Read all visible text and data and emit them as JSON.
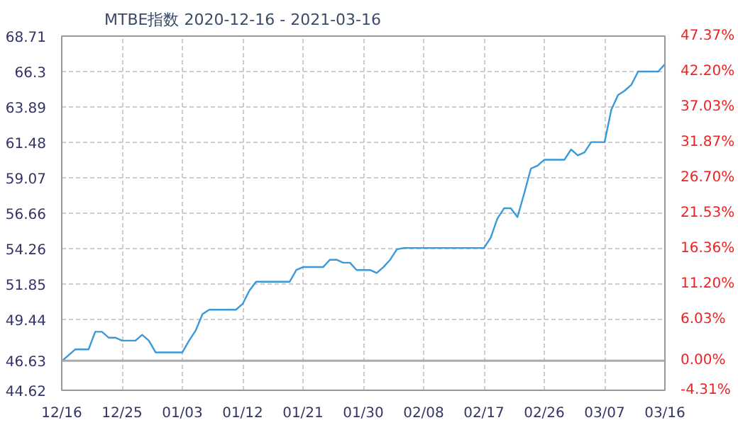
{
  "chart_data": {
    "type": "line",
    "title": "MTBE指数 2020-12-16 - 2021-03-16",
    "x": [
      "2020-12-16",
      "2020-12-18",
      "2020-12-20",
      "2020-12-21",
      "2020-12-22",
      "2020-12-23",
      "2020-12-24",
      "2020-12-25",
      "2020-12-27",
      "2020-12-28",
      "2020-12-29",
      "2020-12-30",
      "2021-01-03",
      "2021-01-04",
      "2021-01-05",
      "2021-01-06",
      "2021-01-07",
      "2021-01-11",
      "2021-01-12",
      "2021-01-13",
      "2021-01-14",
      "2021-01-19",
      "2021-01-20",
      "2021-01-21",
      "2021-01-24",
      "2021-01-25",
      "2021-01-26",
      "2021-01-27",
      "2021-01-28",
      "2021-01-29",
      "2021-01-31",
      "2021-02-01",
      "2021-02-02",
      "2021-02-03",
      "2021-02-04",
      "2021-02-05",
      "2021-02-17",
      "2021-02-18",
      "2021-02-19",
      "2021-02-20",
      "2021-02-21",
      "2021-02-22",
      "2021-02-23",
      "2021-02-24",
      "2021-02-25",
      "2021-02-26",
      "2021-03-01",
      "2021-03-02",
      "2021-03-03",
      "2021-03-04",
      "2021-03-05",
      "2021-03-07",
      "2021-03-08",
      "2021-03-09",
      "2021-03-10",
      "2021-03-11",
      "2021-03-12",
      "2021-03-15",
      "2021-03-16"
    ],
    "series": [
      {
        "color": "#3a9ad9",
        "values": [
          46.6,
          47.4,
          47.4,
          48.6,
          48.6,
          48.2,
          48.2,
          48.0,
          48.0,
          48.4,
          48.0,
          47.2,
          47.2,
          48.0,
          48.7,
          49.8,
          50.1,
          50.1,
          50.5,
          51.4,
          52.0,
          52.0,
          52.8,
          53.0,
          53.0,
          53.5,
          53.5,
          53.3,
          53.3,
          52.8,
          52.8,
          52.6,
          53.0,
          53.5,
          54.2,
          54.3,
          54.3,
          55.0,
          56.3,
          57.0,
          57.0,
          56.4,
          58.0,
          59.7,
          59.9,
          60.3,
          60.3,
          61.0,
          60.6,
          60.8,
          61.5,
          61.5,
          63.7,
          64.7,
          65.0,
          65.4,
          66.3,
          66.3,
          66.8
        ]
      }
    ],
    "xlim": [
      "2020-12-16",
      "2021-03-16"
    ],
    "xticks": [
      {
        "value": "2020-12-16",
        "label": "12/16"
      },
      {
        "value": "2020-12-25",
        "label": "12/25"
      },
      {
        "value": "2021-01-03",
        "label": "01/03"
      },
      {
        "value": "2021-01-12",
        "label": "01/12"
      },
      {
        "value": "2021-01-21",
        "label": "01/21"
      },
      {
        "value": "2021-01-30",
        "label": "01/30"
      },
      {
        "value": "2021-02-08",
        "label": "02/08"
      },
      {
        "value": "2021-02-17",
        "label": "02/17"
      },
      {
        "value": "2021-02-26",
        "label": "02/26"
      },
      {
        "value": "2021-03-07",
        "label": "03/07"
      },
      {
        "value": "2021-03-16",
        "label": "03/16"
      }
    ],
    "ylim": [
      44.62,
      68.71
    ],
    "yticks": [
      44.62,
      46.63,
      49.44,
      51.85,
      54.26,
      56.66,
      59.07,
      61.48,
      63.89,
      66.3,
      68.71
    ],
    "y2lim": [
      -4.31,
      47.37
    ],
    "y2ticks": [
      {
        "value": -4.31,
        "label": "-4.31%"
      },
      {
        "value": 0,
        "label": "0.00%"
      },
      {
        "value": 6.03,
        "label": "6.03%"
      },
      {
        "value": 11.2,
        "label": "11.20%"
      },
      {
        "value": 16.36,
        "label": "16.36%"
      },
      {
        "value": 21.53,
        "label": "21.53%"
      },
      {
        "value": 26.7,
        "label": "26.70%"
      },
      {
        "value": 31.87,
        "label": "31.87%"
      },
      {
        "value": 37.03,
        "label": "37.03%"
      },
      {
        "value": 42.2,
        "label": "42.20%"
      },
      {
        "value": 47.37,
        "label": "47.37%"
      }
    ],
    "ref_lines": [
      {
        "axis": "y",
        "value": 46.63,
        "color": "#aaaaaa"
      }
    ],
    "grid": true
  }
}
